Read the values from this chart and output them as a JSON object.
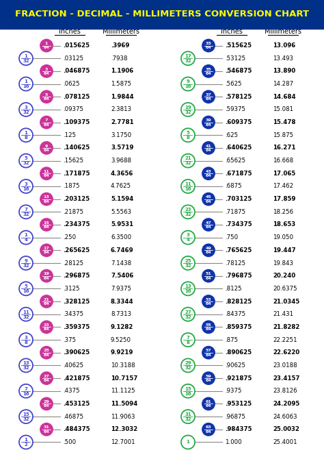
{
  "title": "FRACTION - DECIMAL - MILLIMETERS CONVERSION CHART",
  "title_bg": "#003087",
  "title_color": "#FFFF00",
  "header_inches": "Inches",
  "header_mm": "Millimeters",
  "left_rows": [
    {
      "frac": "1/64",
      "type": "64th",
      "decimal": ".015625",
      "mm": ".3969"
    },
    {
      "frac": "1/32",
      "type": "32nd",
      "decimal": ".03125",
      "mm": ".7938"
    },
    {
      "frac": "3/64",
      "type": "64th",
      "decimal": ".046875",
      "mm": "1.1906"
    },
    {
      "frac": "1/16",
      "type": "16th",
      "decimal": ".0625",
      "mm": "1.5875"
    },
    {
      "frac": "5/64",
      "type": "64th",
      "decimal": ".078125",
      "mm": "1.9844"
    },
    {
      "frac": "3/32",
      "type": "32nd",
      "decimal": ".09375",
      "mm": "2.3813"
    },
    {
      "frac": "7/64",
      "type": "64th",
      "decimal": ".109375",
      "mm": "2.7781"
    },
    {
      "frac": "1/8",
      "type": "8th",
      "decimal": ".125",
      "mm": "3.1750"
    },
    {
      "frac": "9/64",
      "type": "64th",
      "decimal": ".140625",
      "mm": "3.5719"
    },
    {
      "frac": "5/32",
      "type": "32nd",
      "decimal": ".15625",
      "mm": "3.9688"
    },
    {
      "frac": "11/64",
      "type": "64th",
      "decimal": ".171875",
      "mm": "4.3656"
    },
    {
      "frac": "3/16",
      "type": "16th",
      "decimal": ".1875",
      "mm": "4.7625"
    },
    {
      "frac": "13/64",
      "type": "64th",
      "decimal": ".203125",
      "mm": "5.1594"
    },
    {
      "frac": "7/32",
      "type": "32nd",
      "decimal": ".21875",
      "mm": "5.5563"
    },
    {
      "frac": "15/64",
      "type": "64th",
      "decimal": ".234375",
      "mm": "5.9531"
    },
    {
      "frac": "1/4",
      "type": "4th",
      "decimal": ".250",
      "mm": "6.3500"
    },
    {
      "frac": "17/64",
      "type": "64th",
      "decimal": ".265625",
      "mm": "6.7469"
    },
    {
      "frac": "9/32",
      "type": "32nd",
      "decimal": ".28125",
      "mm": "7.1438"
    },
    {
      "frac": "19/64",
      "type": "64th",
      "decimal": ".296875",
      "mm": "7.5406"
    },
    {
      "frac": "5/16",
      "type": "16th",
      "decimal": ".3125",
      "mm": "7.9375"
    },
    {
      "frac": "21/64",
      "type": "64th",
      "decimal": ".328125",
      "mm": "8.3344"
    },
    {
      "frac": "11/32",
      "type": "32nd",
      "decimal": ".34375",
      "mm": "8.7313"
    },
    {
      "frac": "23/64",
      "type": "64th",
      "decimal": ".359375",
      "mm": "9.1282"
    },
    {
      "frac": "3/8",
      "type": "8th",
      "decimal": ".375",
      "mm": "9.5250"
    },
    {
      "frac": "25/64",
      "type": "64th",
      "decimal": ".390625",
      "mm": "9.9219"
    },
    {
      "frac": "13/32",
      "type": "32nd",
      "decimal": ".40625",
      "mm": "10.3188"
    },
    {
      "frac": "27/64",
      "type": "64th",
      "decimal": ".421875",
      "mm": "10.7157"
    },
    {
      "frac": "7/16",
      "type": "16th",
      "decimal": ".4375",
      "mm": "11.1125"
    },
    {
      "frac": "29/64",
      "type": "64th",
      "decimal": ".453125",
      "mm": "11.5094"
    },
    {
      "frac": "15/32",
      "type": "32nd",
      "decimal": ".46875",
      "mm": "11.9063"
    },
    {
      "frac": "31/64",
      "type": "64th",
      "decimal": ".484375",
      "mm": "12.3032"
    },
    {
      "frac": "1/2",
      "type": "half",
      "decimal": ".500",
      "mm": "12.7001"
    }
  ],
  "right_rows": [
    {
      "frac": "33/64",
      "type": "64th",
      "decimal": ".515625",
      "mm": "13.096"
    },
    {
      "frac": "17/32",
      "type": "32nd",
      "decimal": ".53125",
      "mm": "13.493"
    },
    {
      "frac": "35/64",
      "type": "64th",
      "decimal": ".546875",
      "mm": "13.890"
    },
    {
      "frac": "9/16",
      "type": "16th",
      "decimal": ".5625",
      "mm": "14.287"
    },
    {
      "frac": "37/64",
      "type": "64th",
      "decimal": ".578125",
      "mm": "14.684"
    },
    {
      "frac": "19/32",
      "type": "32nd",
      "decimal": ".59375",
      "mm": "15.081"
    },
    {
      "frac": "39/64",
      "type": "64th",
      "decimal": ".609375",
      "mm": "15.478"
    },
    {
      "frac": "5/8",
      "type": "8th",
      "decimal": ".625",
      "mm": "15.875"
    },
    {
      "frac": "41/64",
      "type": "64th",
      "decimal": ".640625",
      "mm": "16.271"
    },
    {
      "frac": "21/32",
      "type": "32nd",
      "decimal": ".65625",
      "mm": "16.668"
    },
    {
      "frac": "43/64",
      "type": "64th",
      "decimal": ".671875",
      "mm": "17.065"
    },
    {
      "frac": "11/16",
      "type": "16th",
      "decimal": ".6875",
      "mm": "17.462"
    },
    {
      "frac": "45/64",
      "type": "64th",
      "decimal": ".703125",
      "mm": "17.859"
    },
    {
      "frac": "23/32",
      "type": "32nd",
      "decimal": ".71875",
      "mm": "18.256"
    },
    {
      "frac": "47/64",
      "type": "64th",
      "decimal": ".734375",
      "mm": "18.653"
    },
    {
      "frac": "3/4",
      "type": "4th",
      "decimal": ".750",
      "mm": "19.050"
    },
    {
      "frac": "49/64",
      "type": "64th",
      "decimal": ".765625",
      "mm": "19.447"
    },
    {
      "frac": "25/32",
      "type": "32nd",
      "decimal": ".78125",
      "mm": "19.843"
    },
    {
      "frac": "51/64",
      "type": "64th",
      "decimal": ".796875",
      "mm": "20.240"
    },
    {
      "frac": "13/16",
      "type": "16th",
      "decimal": ".8125",
      "mm": "20.6375"
    },
    {
      "frac": "53/64",
      "type": "64th",
      "decimal": ".828125",
      "mm": "21.0345"
    },
    {
      "frac": "27/32",
      "type": "32nd",
      "decimal": ".84375",
      "mm": "21.431"
    },
    {
      "frac": "55/64",
      "type": "64th",
      "decimal": ".859375",
      "mm": "21.8282"
    },
    {
      "frac": "7/8",
      "type": "8th",
      "decimal": ".875",
      "mm": "22.2251"
    },
    {
      "frac": "57/64",
      "type": "64th",
      "decimal": ".890625",
      "mm": "22.6220"
    },
    {
      "frac": "29/32",
      "type": "32nd",
      "decimal": ".90625",
      "mm": "23.0188"
    },
    {
      "frac": "59/64",
      "type": "64th",
      "decimal": ".921875",
      "mm": "23.4157"
    },
    {
      "frac": "15/16",
      "type": "16th",
      "decimal": ".9375",
      "mm": "23.8126"
    },
    {
      "frac": "61/64",
      "type": "64th",
      "decimal": ".953125",
      "mm": "24.2095"
    },
    {
      "frac": "31/32",
      "type": "32nd",
      "decimal": ".96875",
      "mm": "24.6063"
    },
    {
      "frac": "63/64",
      "type": "64th",
      "decimal": ".984375",
      "mm": "25.0032"
    },
    {
      "frac": "1",
      "type": "whole",
      "decimal": "1.000",
      "mm": "25.4001"
    }
  ],
  "left_64th_fill": "#CC3399",
  "left_64th_edge": "#CC3399",
  "left_64th_text": "#FFFFFF",
  "left_other_fill": "#FFFFFF",
  "left_other_edge": "#4444CC",
  "left_other_text": "#4444CC",
  "right_64th_fill": "#1133AA",
  "right_64th_edge": "#1133AA",
  "right_64th_text": "#FFFFFF",
  "right_other_fill": "#FFFFFF",
  "right_other_edge": "#22AA44",
  "right_other_text": "#22AA44",
  "bg_color": "#FFFFFF",
  "fig_width": 4.74,
  "fig_height": 6.7,
  "dpi": 100
}
